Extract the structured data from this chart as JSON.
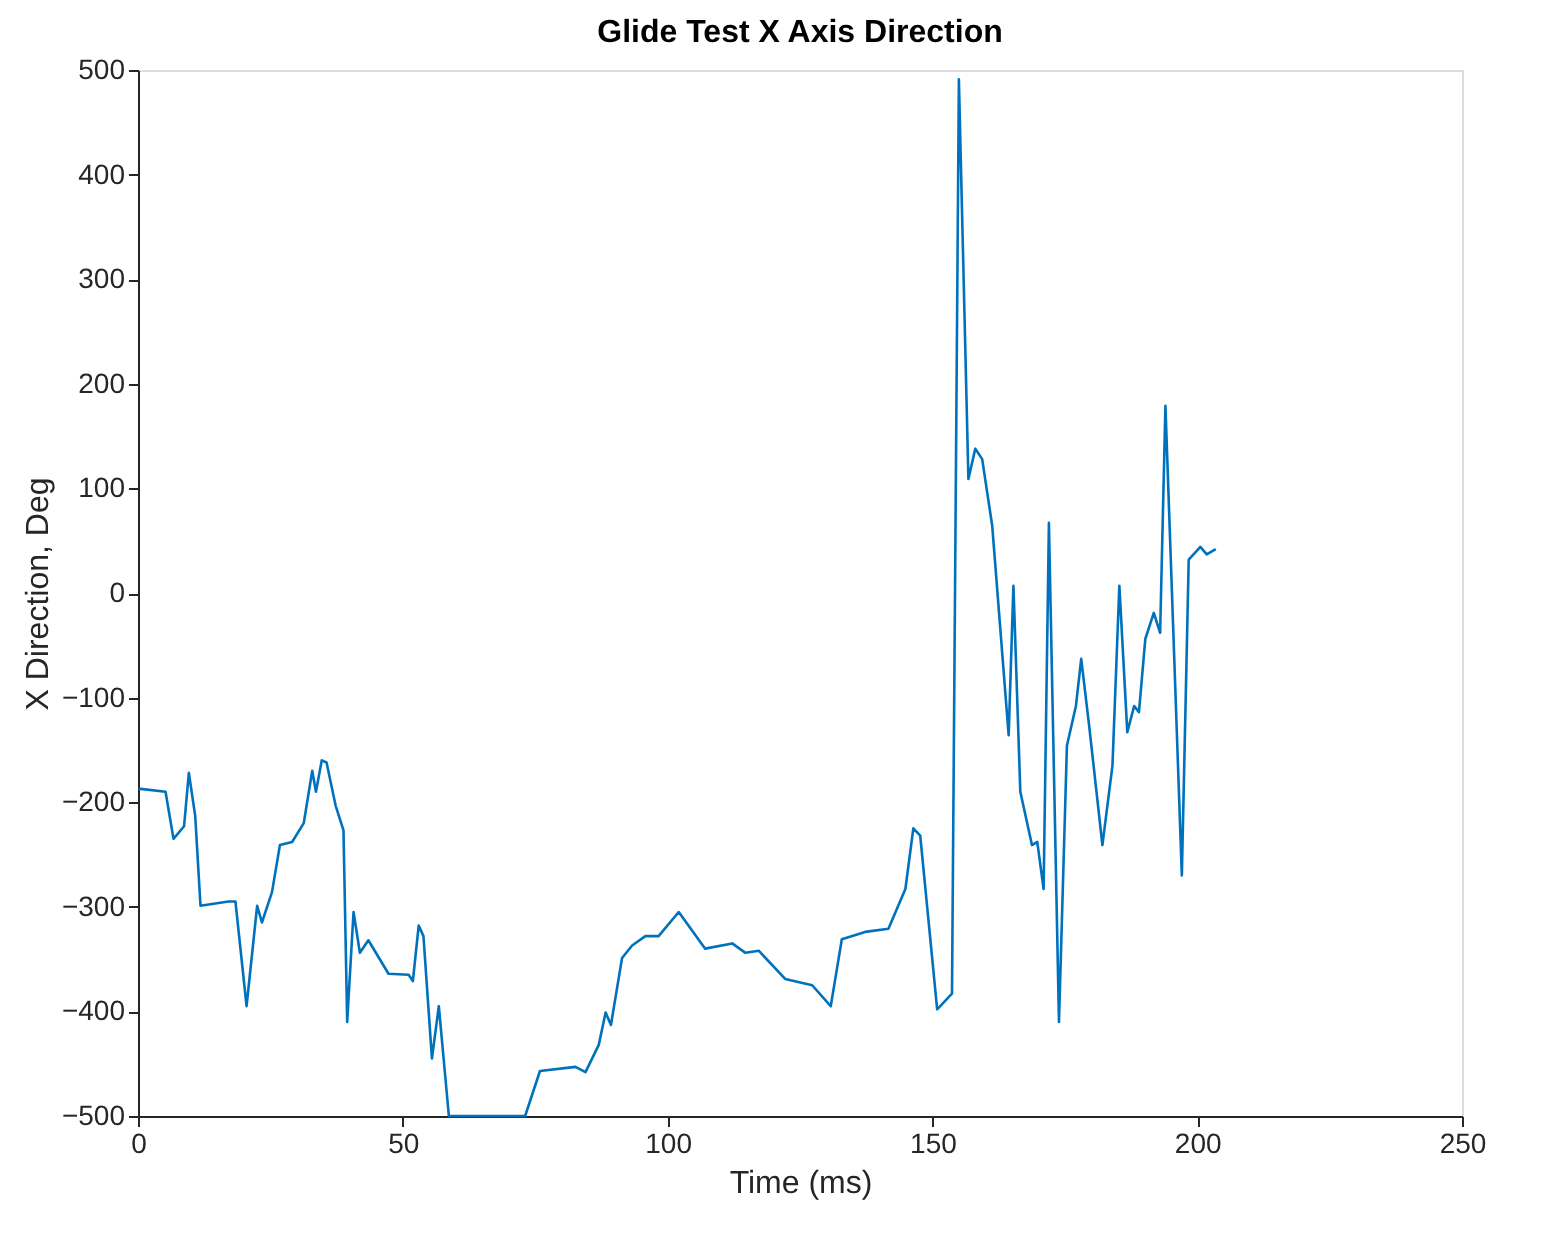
{
  "chart_data": {
    "type": "line",
    "title": "Glide Test X Axis Direction",
    "xlabel": "Time (ms)",
    "ylabel": "X Direction, Deg",
    "xlim": [
      0,
      250
    ],
    "xticks": [
      0,
      50,
      100,
      150,
      200,
      250
    ],
    "ylim": [
      -500,
      500
    ],
    "yticks": [
      -500,
      -400,
      -300,
      -200,
      -100,
      0,
      100,
      200,
      300,
      400,
      500
    ],
    "grid": false,
    "legend": false,
    "marker": "none",
    "line_style": "solid",
    "series": [
      {
        "color": "#0072bd",
        "x": [
          0.1,
          5.2,
          6.7,
          8.7,
          9.6,
          10.8,
          11.8,
          17.1,
          18.4,
          20.5,
          22.5,
          23.4,
          25.3,
          26.8,
          29.1,
          31.3,
          32.9,
          33.6,
          34.7,
          35.6,
          37.3,
          38.8,
          39.5,
          40.7,
          41.9,
          43.5,
          47.3,
          51.1,
          51.9,
          53.0,
          53.9,
          55.5,
          56.8,
          58.7,
          73.1,
          75.9,
          82.6,
          84.5,
          87.0,
          88.3,
          89.3,
          91.4,
          93.3,
          95.8,
          98.3,
          102.1,
          107.1,
          112.2,
          114.7,
          117.2,
          122.2,
          127.3,
          130.8,
          132.9,
          137.3,
          141.7,
          144.9,
          146.4,
          147.7,
          150.9,
          153.7,
          155.0,
          156.8,
          158.1,
          159.4,
          161.3,
          164.4,
          165.3,
          166.6,
          168.8,
          169.8,
          171.0,
          172.0,
          173.9,
          175.4,
          177.1,
          178.1,
          179.6,
          182.1,
          184.0,
          185.3,
          186.8,
          188.1,
          189.0,
          190.2,
          191.8,
          193.0,
          194.0,
          197.1,
          198.4,
          200.6,
          201.8,
          203.5
        ],
        "values": [
          -187,
          -190,
          -235,
          -223,
          -172,
          -213,
          -299,
          -295,
          -295,
          -395,
          -299,
          -315,
          -286,
          -241,
          -238,
          -220,
          -170,
          -190,
          -160,
          -162,
          -203,
          -227,
          -410,
          -305,
          -344,
          -332,
          -364,
          -365,
          -371,
          -318,
          -328,
          -445,
          -395,
          -500,
          -500,
          -457,
          -453,
          -458,
          -432,
          -401,
          -413,
          -349,
          -337,
          -328,
          -328,
          -305,
          -340,
          -335,
          -344,
          -342,
          -369,
          -375,
          -395,
          -331,
          -324,
          -321,
          -283,
          -225,
          -232,
          -398,
          -383,
          491,
          109,
          138,
          128,
          64,
          -136,
          7,
          -190,
          -241,
          -238,
          -283,
          67,
          -410,
          -146,
          -108,
          -63,
          -127,
          -241,
          -165,
          7,
          -133,
          -108,
          -114,
          -44,
          -19,
          -38,
          179,
          -270,
          32,
          44,
          37,
          42
        ]
      }
    ]
  }
}
